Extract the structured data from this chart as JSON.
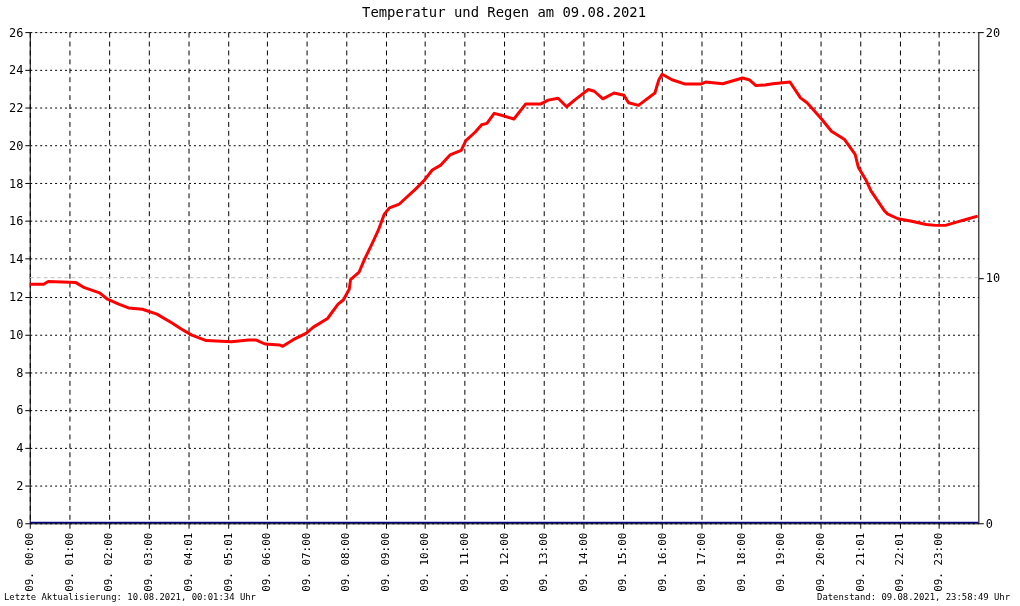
{
  "chart_data": {
    "type": "line",
    "title": "Temperatur und Regen am 09.08.2021",
    "xlim": [
      "2021-08-09T00:00",
      "2021-08-10T00:00"
    ],
    "ylim": [
      0,
      26
    ],
    "yticks": [
      0,
      2,
      4,
      6,
      8,
      10,
      12,
      14,
      16,
      18,
      20,
      22,
      24,
      26
    ],
    "y2lim": [
      0,
      20
    ],
    "y2ticks": [
      0,
      10,
      20
    ],
    "xticks": [
      {
        "value": "2021-08-09T00:00",
        "label": "09. 00:00"
      },
      {
        "value": "2021-08-09T01:00",
        "label": "09. 01:00"
      },
      {
        "value": "2021-08-09T02:00",
        "label": "09. 02:00"
      },
      {
        "value": "2021-08-09T03:00",
        "label": "09. 03:00"
      },
      {
        "value": "2021-08-09T04:01",
        "label": "09. 04:01"
      },
      {
        "value": "2021-08-09T05:01",
        "label": "09. 05:01"
      },
      {
        "value": "2021-08-09T06:00",
        "label": "09. 06:00"
      },
      {
        "value": "2021-08-09T07:00",
        "label": "09. 07:00"
      },
      {
        "value": "2021-08-09T08:00",
        "label": "09. 08:00"
      },
      {
        "value": "2021-08-09T09:00",
        "label": "09. 09:00"
      },
      {
        "value": "2021-08-09T10:00",
        "label": "09. 10:00"
      },
      {
        "value": "2021-08-09T11:00",
        "label": "09. 11:00"
      },
      {
        "value": "2021-08-09T12:00",
        "label": "09. 12:00"
      },
      {
        "value": "2021-08-09T13:00",
        "label": "09. 13:00"
      },
      {
        "value": "2021-08-09T14:00",
        "label": "09. 14:00"
      },
      {
        "value": "2021-08-09T15:00",
        "label": "09. 15:00"
      },
      {
        "value": "2021-08-09T16:00",
        "label": "09. 16:00"
      },
      {
        "value": "2021-08-09T17:00",
        "label": "09. 17:00"
      },
      {
        "value": "2021-08-09T18:00",
        "label": "09. 18:00"
      },
      {
        "value": "2021-08-09T19:00",
        "label": "09. 19:00"
      },
      {
        "value": "2021-08-09T20:00",
        "label": "09. 20:00"
      },
      {
        "value": "2021-08-09T21:01",
        "label": "09. 21:01"
      },
      {
        "value": "2021-08-09T22:01",
        "label": "09. 22:01"
      },
      {
        "value": "2021-08-09T23:00",
        "label": "09. 23:00"
      }
    ],
    "grid": true,
    "marker": "none",
    "line_style": "solid",
    "series": [
      {
        "color": "#ff0000",
        "x": [
          "2021-08-09T00:00",
          "2021-08-09T00:21",
          "2021-08-09T00:28",
          "2021-08-09T01:10",
          "2021-08-09T01:23",
          "2021-08-09T01:46",
          "2021-08-09T01:58",
          "2021-08-09T02:15",
          "2021-08-09T02:30",
          "2021-08-09T02:51",
          "2021-08-09T03:13",
          "2021-08-09T03:36",
          "2021-08-09T03:50",
          "2021-08-09T04:06",
          "2021-08-09T04:28",
          "2021-08-09T05:06",
          "2021-08-09T05:32",
          "2021-08-09T05:44",
          "2021-08-09T05:57",
          "2021-08-09T06:19",
          "2021-08-09T06:24",
          "2021-08-09T06:40",
          "2021-08-09T07:00",
          "2021-08-09T07:10",
          "2021-08-09T07:32",
          "2021-08-09T07:48",
          "2021-08-09T07:56",
          "2021-08-09T08:05",
          "2021-08-09T08:07",
          "2021-08-09T08:20",
          "2021-08-09T08:28",
          "2021-08-09T08:39",
          "2021-08-09T08:49",
          "2021-08-09T08:58",
          "2021-08-09T09:06",
          "2021-08-09T09:21",
          "2021-08-09T09:46",
          "2021-08-09T10:00",
          "2021-08-09T10:11",
          "2021-08-09T10:24",
          "2021-08-09T10:38",
          "2021-08-09T10:55",
          "2021-08-09T11:02",
          "2021-08-09T11:16",
          "2021-08-09T11:26",
          "2021-08-09T11:34",
          "2021-08-09T11:45",
          "2021-08-09T11:59",
          "2021-08-09T12:15",
          "2021-08-09T12:33",
          "2021-08-09T12:56",
          "2021-08-09T13:07",
          "2021-08-09T13:22",
          "2021-08-09T13:35",
          "2021-08-09T13:47",
          "2021-08-09T14:08",
          "2021-08-09T14:17",
          "2021-08-09T14:30",
          "2021-08-09T14:47",
          "2021-08-09T15:02",
          "2021-08-09T15:09",
          "2021-08-09T15:24",
          "2021-08-09T15:49",
          "2021-08-09T15:55",
          "2021-08-09T16:00",
          "2021-08-09T16:15",
          "2021-08-09T16:35",
          "2021-08-09T16:59",
          "2021-08-09T17:06",
          "2021-08-09T17:32",
          "2021-08-09T18:02",
          "2021-08-09T18:12",
          "2021-08-09T18:22",
          "2021-08-09T18:36",
          "2021-08-09T18:48",
          "2021-08-09T19:14",
          "2021-08-09T19:30",
          "2021-08-09T19:40",
          "2021-08-09T20:02",
          "2021-08-09T20:17",
          "2021-08-09T20:37",
          "2021-08-09T20:53",
          "2021-08-09T20:58",
          "2021-08-09T21:10",
          "2021-08-09T21:17",
          "2021-08-09T21:27",
          "2021-08-09T21:37",
          "2021-08-09T21:42",
          "2021-08-09T21:58",
          "2021-08-09T22:17",
          "2021-08-09T22:41",
          "2021-08-09T22:55",
          "2021-08-09T23:10",
          "2021-08-09T23:27",
          "2021-08-09T23:41",
          "2021-08-09T23:59"
        ],
        "values": [
          12.65,
          12.65,
          12.8,
          12.74,
          12.47,
          12.2,
          11.86,
          11.6,
          11.4,
          11.33,
          11.07,
          10.6,
          10.28,
          9.96,
          9.67,
          9.61,
          9.7,
          9.7,
          9.49,
          9.44,
          9.37,
          9.72,
          10.07,
          10.37,
          10.84,
          11.6,
          11.82,
          12.39,
          12.9,
          13.3,
          13.96,
          14.75,
          15.5,
          16.35,
          16.7,
          16.9,
          17.7,
          18.2,
          18.7,
          18.96,
          19.5,
          19.74,
          20.26,
          20.7,
          21.1,
          21.17,
          21.7,
          21.57,
          21.4,
          22.2,
          22.2,
          22.4,
          22.5,
          22.05,
          22.4,
          22.96,
          22.87,
          22.47,
          22.78,
          22.66,
          22.26,
          22.12,
          22.78,
          23.48,
          23.77,
          23.48,
          23.25,
          23.25,
          23.36,
          23.27,
          23.57,
          23.48,
          23.18,
          23.2,
          23.27,
          23.36,
          22.52,
          22.26,
          21.4,
          20.75,
          20.31,
          19.53,
          18.83,
          18.13,
          17.6,
          17.08,
          16.56,
          16.38,
          16.12,
          16.0,
          15.82,
          15.77,
          15.77,
          15.94,
          16.08,
          16.26
        ]
      },
      {
        "color": "#000080",
        "axis": "y2",
        "x": [
          "2021-08-09T00:00",
          "2021-08-10T00:00"
        ],
        "values": [
          0,
          0
        ]
      }
    ],
    "ref_lines": [
      {
        "axis": "y2",
        "value": 10,
        "color": "#c0c0c0",
        "line_style": "dashed"
      }
    ],
    "annotations": [
      "Letzte Aktualisierung: 10.08.2021, 00:01:34 Uhr",
      "Datenstand: 09.08.2021, 23:58:49 Uhr"
    ]
  }
}
